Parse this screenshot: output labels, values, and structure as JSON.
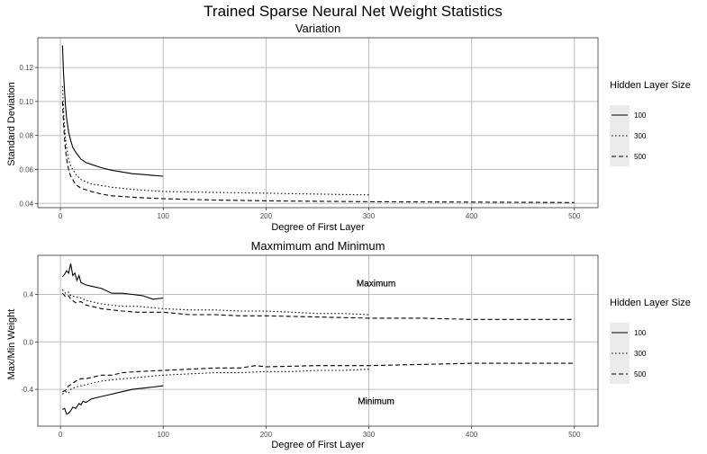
{
  "figure_title": "Trained Sparse Neural Net Weight Statistics",
  "chart_data": [
    {
      "type": "line",
      "title": "Variation",
      "xlabel": "Degree of First Layer",
      "ylabel": "Standard Deviation",
      "xlim": [
        -22,
        523
      ],
      "ylim": [
        0.0375,
        0.1375
      ],
      "x_ticks": [
        0,
        100,
        200,
        300,
        400,
        500
      ],
      "y_ticks": [
        0.04,
        0.06,
        0.08,
        0.1,
        0.12
      ],
      "y_tick_labels": [
        "0.04",
        "0.06",
        "0.08",
        "0.10",
        "0.12"
      ],
      "grid": true,
      "legend": {
        "title": "Hidden Layer Size",
        "position": "right"
      },
      "series": [
        {
          "name": "100",
          "style": "solid",
          "x": [
            2,
            3,
            4,
            5,
            6,
            8,
            10,
            12,
            15,
            20,
            25,
            30,
            40,
            50,
            60,
            70,
            80,
            90,
            100
          ],
          "y": [
            0.133,
            0.117,
            0.106,
            0.097,
            0.09,
            0.082,
            0.077,
            0.073,
            0.07,
            0.066,
            0.064,
            0.063,
            0.061,
            0.0595,
            0.0585,
            0.0575,
            0.057,
            0.0565,
            0.056
          ]
        },
        {
          "name": "300",
          "style": "dotted",
          "x": [
            2,
            3,
            4,
            5,
            6,
            8,
            10,
            15,
            20,
            30,
            40,
            50,
            75,
            100,
            150,
            200,
            250,
            300
          ],
          "y": [
            0.109,
            0.095,
            0.085,
            0.078,
            0.073,
            0.066,
            0.062,
            0.057,
            0.054,
            0.0515,
            0.0505,
            0.0495,
            0.048,
            0.047,
            0.0465,
            0.046,
            0.0455,
            0.045
          ]
        },
        {
          "name": "500",
          "style": "dashed",
          "x": [
            2,
            3,
            4,
            5,
            6,
            8,
            10,
            15,
            20,
            30,
            40,
            50,
            75,
            100,
            150,
            200,
            300,
            400,
            500
          ],
          "y": [
            0.1,
            0.087,
            0.078,
            0.071,
            0.066,
            0.06,
            0.056,
            0.051,
            0.049,
            0.047,
            0.0455,
            0.0445,
            0.0435,
            0.0428,
            0.042,
            0.0415,
            0.041,
            0.0408,
            0.0405
          ]
        }
      ]
    },
    {
      "type": "line",
      "title": "Maxmimum and Minimum",
      "xlabel": "Degree of First Layer",
      "ylabel": "Max/Min Weight",
      "xlim": [
        -22,
        523
      ],
      "ylim": [
        -0.71,
        0.73
      ],
      "x_ticks": [
        0,
        100,
        200,
        300,
        400,
        500
      ],
      "y_ticks": [
        -0.4,
        0.0,
        0.4
      ],
      "y_tick_labels": [
        "-0.4",
        "0.0",
        "0.4"
      ],
      "grid": true,
      "legend": {
        "title": "Hidden Layer Size",
        "position": "right"
      },
      "annotations": [
        {
          "text": "Maximum",
          "x": 300,
          "y": 0.49
        },
        {
          "text": "Minimum",
          "x": 300,
          "y": -0.5
        }
      ],
      "series": [
        {
          "name": "100",
          "style": "solid",
          "x": [
            2,
            4,
            6,
            8,
            10,
            12,
            14,
            16,
            18,
            20,
            25,
            30,
            40,
            50,
            60,
            70,
            80,
            90,
            100
          ],
          "y": [
            0.55,
            0.57,
            0.6,
            0.58,
            0.66,
            0.56,
            0.58,
            0.52,
            0.56,
            0.5,
            0.48,
            0.47,
            0.45,
            0.41,
            0.41,
            0.4,
            0.39,
            0.36,
            0.37
          ]
        },
        {
          "name": "300",
          "style": "dotted",
          "x": [
            2,
            5,
            8,
            10,
            15,
            20,
            25,
            30,
            40,
            50,
            60,
            75,
            100,
            125,
            150,
            175,
            200,
            225,
            250,
            275,
            300
          ],
          "y": [
            0.44,
            0.41,
            0.42,
            0.39,
            0.38,
            0.37,
            0.35,
            0.34,
            0.32,
            0.31,
            0.3,
            0.3,
            0.28,
            0.27,
            0.27,
            0.26,
            0.26,
            0.25,
            0.24,
            0.24,
            0.23
          ]
        },
        {
          "name": "500",
          "style": "dashed",
          "x": [
            2,
            5,
            8,
            10,
            15,
            20,
            25,
            30,
            40,
            50,
            60,
            75,
            100,
            125,
            150,
            175,
            200,
            250,
            300,
            350,
            400,
            450,
            500
          ],
          "y": [
            0.41,
            0.38,
            0.39,
            0.36,
            0.33,
            0.34,
            0.31,
            0.3,
            0.28,
            0.27,
            0.26,
            0.25,
            0.25,
            0.23,
            0.23,
            0.22,
            0.22,
            0.21,
            0.2,
            0.2,
            0.19,
            0.19,
            0.19
          ]
        },
        {
          "name": "100",
          "style": "solid",
          "x": [
            2,
            4,
            6,
            8,
            10,
            12,
            15,
            18,
            20,
            22,
            25,
            30,
            40,
            50,
            60,
            70,
            80,
            90,
            100
          ],
          "y": [
            -0.57,
            -0.56,
            -0.61,
            -0.6,
            -0.58,
            -0.55,
            -0.56,
            -0.52,
            -0.53,
            -0.5,
            -0.51,
            -0.48,
            -0.46,
            -0.44,
            -0.42,
            -0.4,
            -0.39,
            -0.38,
            -0.37
          ]
        },
        {
          "name": "300",
          "style": "dotted",
          "x": [
            2,
            5,
            8,
            10,
            15,
            20,
            25,
            30,
            40,
            50,
            75,
            100,
            125,
            150,
            175,
            200,
            225,
            250,
            275,
            300
          ],
          "y": [
            -0.44,
            -0.42,
            -0.43,
            -0.4,
            -0.38,
            -0.37,
            -0.36,
            -0.35,
            -0.33,
            -0.32,
            -0.3,
            -0.28,
            -0.27,
            -0.26,
            -0.26,
            -0.25,
            -0.25,
            -0.24,
            -0.24,
            -0.23
          ]
        },
        {
          "name": "500",
          "style": "dashed",
          "x": [
            2,
            5,
            8,
            10,
            15,
            20,
            25,
            30,
            40,
            50,
            60,
            75,
            100,
            125,
            150,
            175,
            190,
            200,
            250,
            300,
            350,
            400,
            450,
            500
          ],
          "y": [
            -0.42,
            -0.41,
            -0.37,
            -0.36,
            -0.33,
            -0.31,
            -0.31,
            -0.3,
            -0.28,
            -0.28,
            -0.26,
            -0.25,
            -0.24,
            -0.23,
            -0.22,
            -0.22,
            -0.2,
            -0.21,
            -0.2,
            -0.2,
            -0.19,
            -0.18,
            -0.18,
            -0.18
          ]
        }
      ]
    }
  ],
  "legend_keys": [
    {
      "label": "100",
      "style": "solid"
    },
    {
      "label": "300",
      "style": "dotted"
    },
    {
      "label": "500",
      "style": "dashed"
    }
  ],
  "colors": {
    "line": "#000000",
    "grid": "#bdbdbd",
    "panel_border": "#333333",
    "legend_key_bg": "#ebebeb",
    "tick_text": "#4d4d4d"
  }
}
